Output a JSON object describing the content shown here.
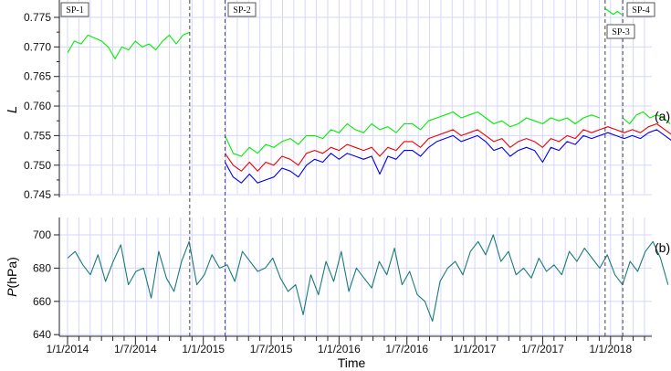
{
  "chart_data": [
    {
      "type": "line",
      "panel": "(a)",
      "ylabel": "L",
      "ylim": [
        0.7435,
        0.7775
      ],
      "yticks": [
        "0.745",
        "0.750",
        "0.755",
        "0.760",
        "0.765",
        "0.770",
        "0.775"
      ],
      "series": [
        {
          "name": "SP-1 green",
          "color": "#00ee00",
          "x_start": 2014.0,
          "x_step": 0.05,
          "values": [
            0.769,
            0.771,
            0.7705,
            0.772,
            0.7715,
            0.771,
            0.77,
            0.768,
            0.77,
            0.7695,
            0.771,
            0.77,
            0.7705,
            0.7695,
            0.771,
            0.772,
            0.7705,
            0.772,
            0.7725
          ]
        },
        {
          "name": "SP-2 green",
          "color": "#00ee00",
          "x_start": 2015.16,
          "x_step": 0.06,
          "values": [
            0.755,
            0.752,
            0.7515,
            0.753,
            0.752,
            0.7535,
            0.753,
            0.754,
            0.7545,
            0.7535,
            0.755,
            0.755,
            0.7545,
            0.756,
            0.7555,
            0.757,
            0.756,
            0.7555,
            0.757,
            0.756,
            0.7565,
            0.7555,
            0.757,
            0.757,
            0.756,
            0.7575,
            0.758,
            0.7585,
            0.759,
            0.758,
            0.7585,
            0.759,
            0.758,
            0.757,
            0.7575,
            0.7565,
            0.757,
            0.758,
            0.7575,
            0.757,
            0.758,
            0.7575,
            0.758,
            0.757,
            0.758,
            0.7585,
            0.758
          ]
        },
        {
          "name": "SP-3 green",
          "color": "#00ee00",
          "x_start": 2017.96,
          "x_step": 0.03,
          "values": [
            0.7765,
            0.776,
            0.7755,
            0.776,
            0.7755
          ]
        },
        {
          "name": "SP-4 green",
          "color": "#00ee00",
          "x_start": 2018.09,
          "x_step": 0.05,
          "values": [
            0.758,
            0.757,
            0.7585,
            0.759,
            0.758,
            0.7585,
            0.758,
            0.757
          ]
        },
        {
          "name": "red",
          "color": "#ee0000",
          "x_start": 2015.16,
          "x_step": 0.06,
          "values": [
            0.752,
            0.75,
            0.749,
            0.7505,
            0.749,
            0.7505,
            0.75,
            0.7515,
            0.751,
            0.75,
            0.752,
            0.7525,
            0.752,
            0.753,
            0.7525,
            0.7535,
            0.753,
            0.7525,
            0.753,
            0.7515,
            0.753,
            0.7525,
            0.754,
            0.754,
            0.753,
            0.7545,
            0.755,
            0.7555,
            0.756,
            0.755,
            0.7555,
            0.756,
            0.755,
            0.754,
            0.7545,
            0.753,
            0.754,
            0.7545,
            0.754,
            0.753,
            0.7545,
            0.754,
            0.755,
            0.7545,
            0.756,
            0.7555,
            0.756,
            0.7565,
            0.756,
            0.7555,
            0.756,
            0.7555,
            0.7565,
            0.757,
            0.756,
            0.755
          ]
        },
        {
          "name": "blue",
          "color": "#0000ee",
          "x_start": 2015.16,
          "x_step": 0.06,
          "values": [
            0.7505,
            0.748,
            0.747,
            0.7485,
            0.747,
            0.7475,
            0.748,
            0.7495,
            0.749,
            0.748,
            0.75,
            0.751,
            0.7505,
            0.752,
            0.751,
            0.752,
            0.7515,
            0.751,
            0.7515,
            0.7485,
            0.7515,
            0.751,
            0.7525,
            0.7525,
            0.7515,
            0.753,
            0.754,
            0.7545,
            0.755,
            0.754,
            0.7545,
            0.755,
            0.754,
            0.7525,
            0.753,
            0.7515,
            0.7525,
            0.753,
            0.7525,
            0.7505,
            0.753,
            0.7525,
            0.754,
            0.7535,
            0.755,
            0.7545,
            0.755,
            0.7555,
            0.755,
            0.7545,
            0.755,
            0.7545,
            0.7555,
            0.756,
            0.755,
            0.754
          ]
        }
      ]
    },
    {
      "type": "line",
      "panel": "(b)",
      "ylabel": "P(hPa)",
      "ylim": [
        637,
        710
      ],
      "yticks": [
        "640",
        "660",
        "680",
        "700"
      ],
      "series": [
        {
          "name": "pressure",
          "color": "#1a7a7a",
          "x_start": 2014.0,
          "x_step": 0.056,
          "values": [
            686,
            690,
            682,
            676,
            688,
            672,
            684,
            694,
            670,
            678,
            680,
            662,
            690,
            674,
            666,
            684,
            696,
            670,
            676,
            688,
            680,
            682,
            672,
            690,
            684,
            678,
            680,
            686,
            674,
            666,
            670,
            652,
            676,
            664,
            684,
            672,
            690,
            666,
            680,
            674,
            668,
            684,
            676,
            692,
            670,
            678,
            664,
            660,
            648,
            672,
            680,
            684,
            676,
            690,
            696,
            688,
            700,
            684,
            690,
            676,
            680,
            674,
            686,
            678,
            682,
            676,
            690,
            684,
            692,
            686,
            680,
            688,
            676,
            670,
            684,
            678,
            690,
            696,
            686,
            670
          ]
        }
      ]
    }
  ],
  "xaxis": {
    "label": "Time",
    "ticks": [
      {
        "x": 2014.0,
        "label": "1/1/2014"
      },
      {
        "x": 2014.5,
        "label": "1/7/2014"
      },
      {
        "x": 2015.0,
        "label": "1/1/2015"
      },
      {
        "x": 2015.5,
        "label": "1/7/2015"
      },
      {
        "x": 2016.0,
        "label": "1/1/2016"
      },
      {
        "x": 2016.5,
        "label": "1/7/2016"
      },
      {
        "x": 2017.0,
        "label": "1/1/2017"
      },
      {
        "x": 2017.5,
        "label": "1/7/2017"
      },
      {
        "x": 2018.0,
        "label": "1/1/2018"
      }
    ],
    "xlim": [
      2013.94,
      2018.53
    ]
  },
  "dividers": [
    {
      "x": 2014.9,
      "label": "SP-1"
    },
    {
      "x": 2015.16,
      "label": "SP-2"
    },
    {
      "x": 2017.96,
      "label": "SP-3"
    },
    {
      "x": 2018.09,
      "label": "SP-4"
    }
  ],
  "panel_labels": {
    "a": "(a)",
    "b": "(b)"
  },
  "axis_labels": {
    "L": "L",
    "P_italic": "P",
    "P_unit": "(hPa)",
    "time": "Time"
  }
}
